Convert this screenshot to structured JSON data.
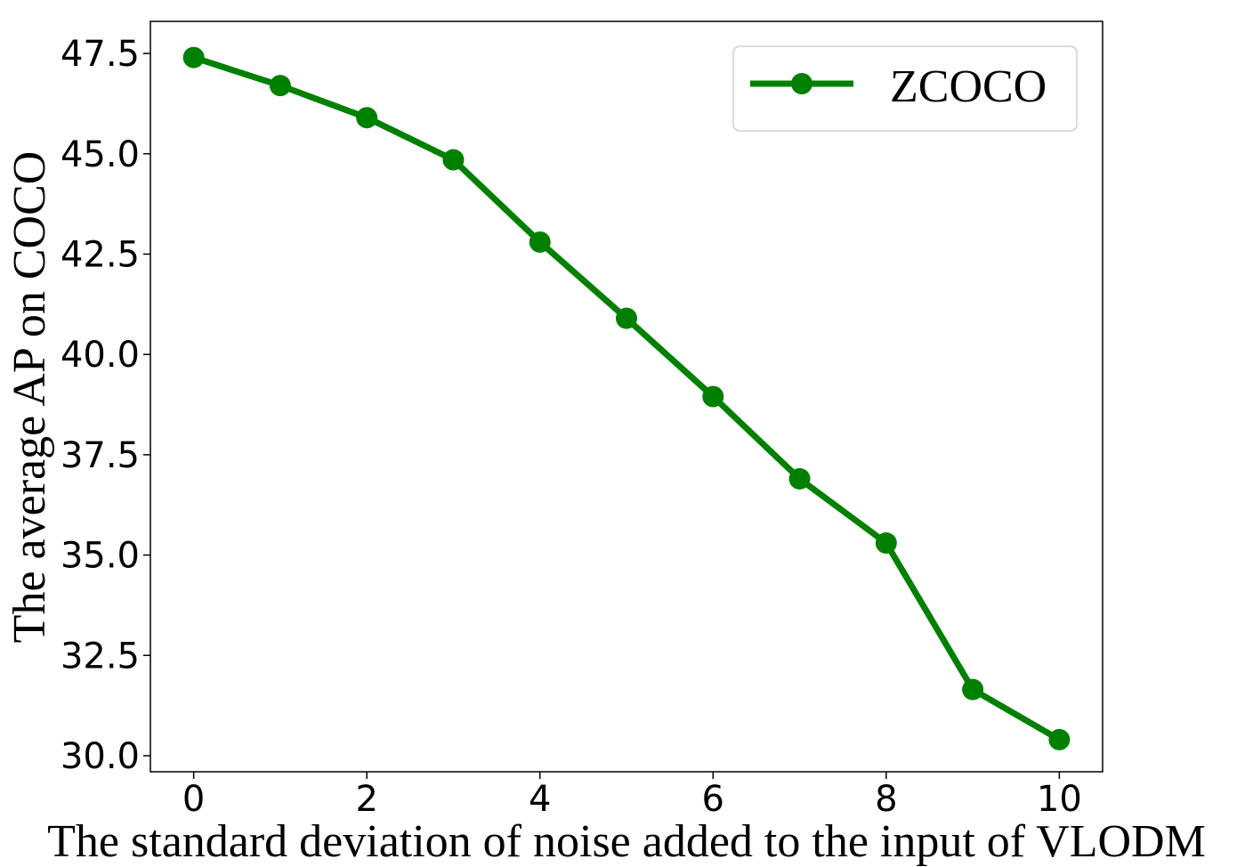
{
  "chart_data": {
    "type": "line",
    "title": "",
    "xlabel": "The standard deviation of noise added to the input of VLODM",
    "ylabel": "The average AP on COCO",
    "x": [
      0,
      1,
      2,
      3,
      4,
      5,
      6,
      7,
      8,
      9,
      10
    ],
    "series": [
      {
        "name": "ZCOCO",
        "color": "#008000",
        "marker": "circle",
        "values": [
          47.4,
          46.7,
          45.9,
          44.85,
          42.8,
          40.9,
          38.95,
          36.9,
          35.3,
          31.65,
          30.4
        ]
      }
    ],
    "xlim": [
      -0.5,
      10.5
    ],
    "ylim": [
      29.6,
      48.3
    ],
    "xticks": [
      0,
      2,
      4,
      6,
      8,
      10
    ],
    "xtick_labels": [
      "0",
      "2",
      "4",
      "6",
      "8",
      "10"
    ],
    "yticks": [
      30.0,
      32.5,
      35.0,
      37.5,
      40.0,
      42.5,
      45.0,
      47.5
    ],
    "ytick_labels": [
      "30.0",
      "32.5",
      "35.0",
      "37.5",
      "40.0",
      "42.5",
      "45.0",
      "47.5"
    ],
    "grid": false,
    "legend_position": "top-right"
  }
}
